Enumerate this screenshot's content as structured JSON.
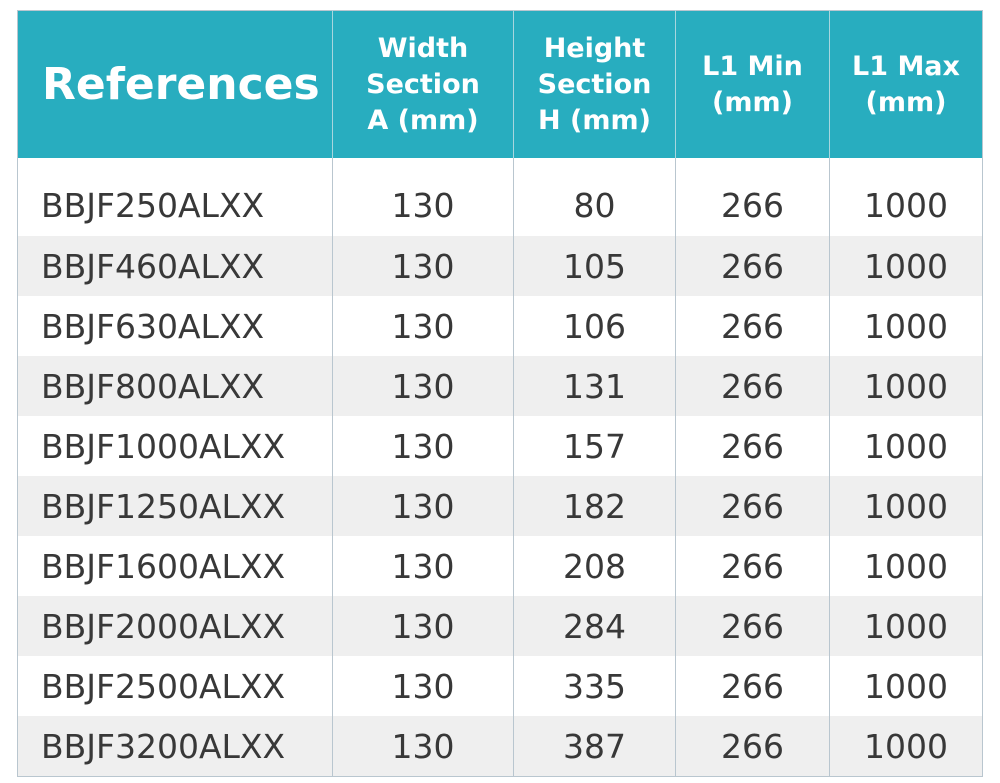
{
  "table": {
    "header": [
      [
        "References"
      ],
      [
        "Width",
        "Section",
        "A (mm)"
      ],
      [
        "Height",
        "Section",
        "H (mm)"
      ],
      [
        "L1 Min",
        "(mm)"
      ],
      [
        "L1 Max",
        "(mm)"
      ]
    ],
    "rows": [
      [
        "BBJF250ALXX",
        130,
        80,
        266,
        1000
      ],
      [
        "BBJF460ALXX",
        130,
        105,
        266,
        1000
      ],
      [
        "BBJF630ALXX",
        130,
        106,
        266,
        1000
      ],
      [
        "BBJF800ALXX",
        130,
        131,
        266,
        1000
      ],
      [
        "BBJF1000ALXX",
        130,
        157,
        266,
        1000
      ],
      [
        "BBJF1250ALXX",
        130,
        182,
        266,
        1000
      ],
      [
        "BBJF1600ALXX",
        130,
        208,
        266,
        1000
      ],
      [
        "BBJF2000ALXX",
        130,
        284,
        266,
        1000
      ],
      [
        "BBJF2500ALXX",
        130,
        335,
        266,
        1000
      ],
      [
        "BBJF3200ALXX",
        130,
        387,
        266,
        1000
      ]
    ]
  }
}
